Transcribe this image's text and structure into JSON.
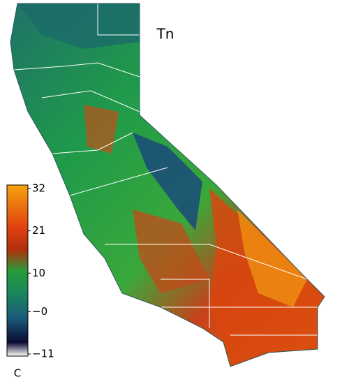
{
  "map": {
    "title": "Tn",
    "colorbar": {
      "unit": "C",
      "clim": [
        -11,
        32
      ],
      "ticks": [
        32,
        21,
        10,
        {
          "value": 0,
          "label": "−0"
        },
        {
          "value": -11,
          "label": "−11"
        }
      ]
    }
  }
}
